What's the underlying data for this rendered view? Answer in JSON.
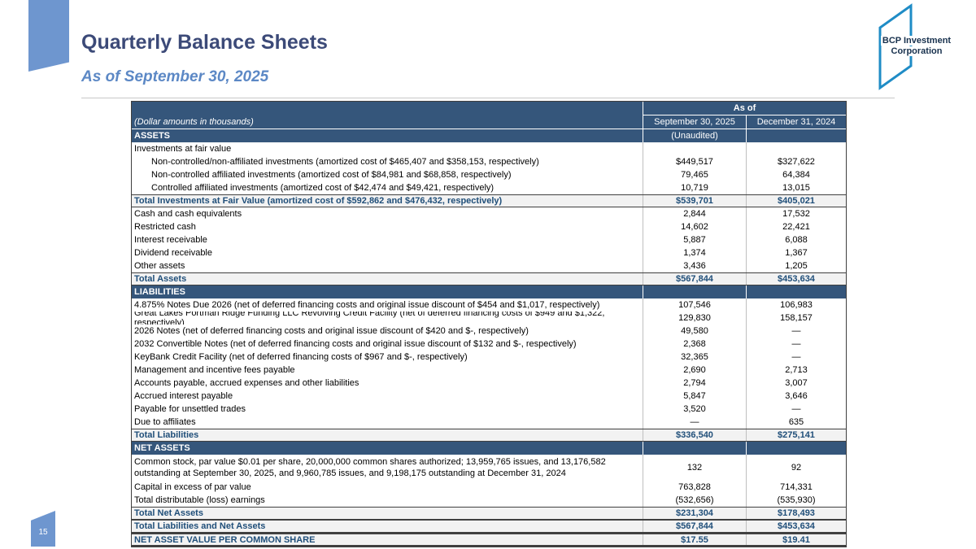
{
  "page": {
    "number": "15"
  },
  "header": {
    "title": "Quarterly Balance Sheets",
    "subtitle": "As of September 30, 2025"
  },
  "logo": {
    "line1": "BCP Investment",
    "line2": "Corporation"
  },
  "colors": {
    "header_navy": "#35567B",
    "total_text_navy": "#1F4E79",
    "total_row_bg": "#F2F2F2",
    "accent_ribbon_blue": "#6E96CF",
    "logo_stroke_blue": "#1F8CC6",
    "title_navy": "#3C4A78",
    "subtitle_blue": "#5C88C5"
  },
  "table": {
    "asof_label": "As of",
    "note_label": "(Dollar amounts in thousands)",
    "col1": "September 30, 2025",
    "col2": "December 31, 2024",
    "rows": [
      {
        "type": "section",
        "label": "ASSETS",
        "v1": "(Unaudited)",
        "v2": ""
      },
      {
        "type": "plain",
        "label": "Investments at fair value",
        "v1": "",
        "v2": ""
      },
      {
        "type": "plain",
        "indent": true,
        "label": "Non-controlled/non-affiliated investments (amortized cost of $465,407 and $358,153, respectively)",
        "v1": "$449,517",
        "v2": "$327,622"
      },
      {
        "type": "plain",
        "indent": true,
        "label": "Non-controlled affiliated investments (amortized cost of $84,981 and $68,858, respectively)",
        "v1": "79,465",
        "v2": "64,384"
      },
      {
        "type": "plain",
        "indent": true,
        "label": "Controlled affiliated investments (amortized cost of $42,474 and $49,421, respectively)",
        "v1": "10,719",
        "v2": "13,015"
      },
      {
        "type": "total",
        "label": "Total Investments at Fair Value (amortized cost of $592,862 and $476,432, respectively)",
        "v1": "$539,701",
        "v2": "$405,021"
      },
      {
        "type": "plain",
        "label": "Cash and cash equivalents",
        "v1": "2,844",
        "v2": "17,532"
      },
      {
        "type": "plain",
        "label": "Restricted cash",
        "v1": "14,602",
        "v2": "22,421"
      },
      {
        "type": "plain",
        "label": "Interest receivable",
        "v1": "5,887",
        "v2": "6,088"
      },
      {
        "type": "plain",
        "label": "Dividend receivable",
        "v1": "1,374",
        "v2": "1,367"
      },
      {
        "type": "plain",
        "label": "Other assets",
        "v1": "3,436",
        "v2": "1,205"
      },
      {
        "type": "total",
        "label": "Total Assets",
        "v1": "$567,844",
        "v2": "$453,634"
      },
      {
        "type": "section",
        "label": "LIABILITIES",
        "v1": "",
        "v2": ""
      },
      {
        "type": "plain",
        "label": "4.875% Notes Due 2026 (net of deferred financing costs and original issue discount of $454 and $1,017, respectively)",
        "v1": "107,546",
        "v2": "106,983"
      },
      {
        "type": "plain",
        "label": "Great Lakes Portman Ridge Funding LLC Revolving Credit Facility (net of deferred financing costs of $949 and $1,322, respectively)",
        "v1": "129,830",
        "v2": "158,157"
      },
      {
        "type": "plain",
        "label": "2026 Notes (net of deferred financing costs and original issue discount of $420 and $-, respectively)",
        "v1": "49,580",
        "v2": "—"
      },
      {
        "type": "plain",
        "label": "2032 Convertible Notes (net of deferred financing costs and original issue discount of $132 and $-, respectively)",
        "v1": "2,368",
        "v2": "—"
      },
      {
        "type": "plain",
        "label": "KeyBank Credit Facility (net of deferred financing costs of $967 and $-, respectively)",
        "v1": "32,365",
        "v2": "—"
      },
      {
        "type": "plain",
        "label": "Management and incentive fees payable",
        "v1": "2,690",
        "v2": "2,713"
      },
      {
        "type": "plain",
        "label": "Accounts payable, accrued expenses and other liabilities",
        "v1": "2,794",
        "v2": "3,007"
      },
      {
        "type": "plain",
        "label": "Accrued interest payable",
        "v1": "5,847",
        "v2": "3,646"
      },
      {
        "type": "plain",
        "label": "Payable for unsettled trades",
        "v1": "3,520",
        "v2": "—"
      },
      {
        "type": "plain",
        "label": "Due to affiliates",
        "v1": "—",
        "v2": "635"
      },
      {
        "type": "total",
        "label": "Total Liabilities",
        "v1": "$336,540",
        "v2": "$275,141"
      },
      {
        "type": "section",
        "label": "NET ASSETS",
        "v1": "",
        "v2": ""
      },
      {
        "type": "plain",
        "tall": true,
        "label": "Common stock, par value $0.01 per share, 20,000,000 common shares authorized; 13,959,765 issues, and 13,176,582 outstanding at September 30, 2025, and 9,960,785 issues, and 9,198,175 outstanding at December 31, 2024",
        "v1": "132",
        "v2": "92"
      },
      {
        "type": "plain",
        "label": "Capital in excess of par value",
        "v1": "763,828",
        "v2": "714,331"
      },
      {
        "type": "plain",
        "label": "Total distributable (loss) earnings",
        "v1": "(532,656)",
        "v2": "(535,930)"
      },
      {
        "type": "total",
        "label": "Total Net Assets",
        "v1": "$231,304",
        "v2": "$178,493"
      },
      {
        "type": "total",
        "label": "Total Liabilities and Net Assets",
        "v1": "$567,844",
        "v2": "$453,634"
      },
      {
        "type": "total",
        "thick": true,
        "label": "NET ASSET VALUE PER COMMON SHARE",
        "v1": "$17.55",
        "v2": "$19.41"
      }
    ]
  }
}
